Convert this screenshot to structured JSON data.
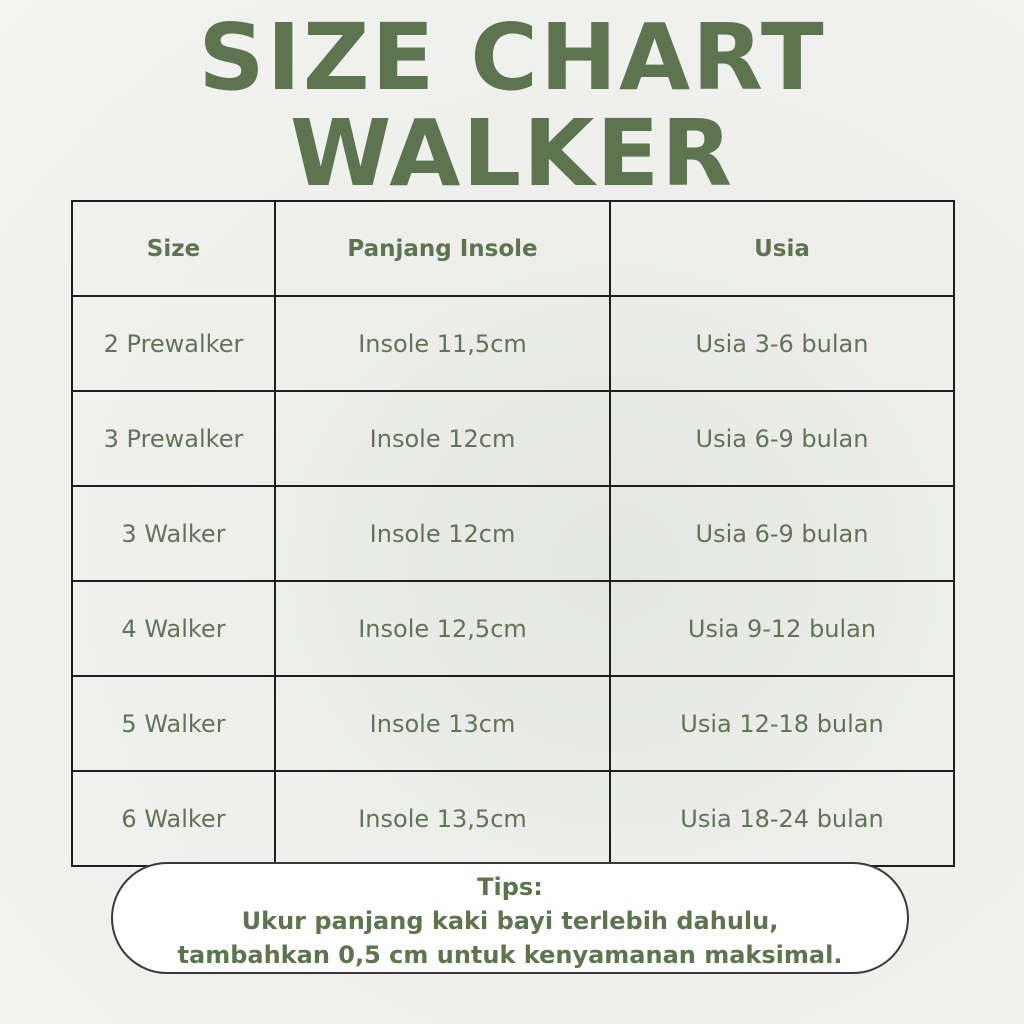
{
  "title": {
    "line1": "SIZE CHART",
    "line2": "WALKER"
  },
  "colors": {
    "accent": "#5e7451",
    "text": "#63735a",
    "border": "#1e1e1e"
  },
  "table": {
    "headers": [
      "Size",
      "Panjang Insole",
      "Usia"
    ],
    "rows": [
      [
        "2 Prewalker",
        "Insole 11,5cm",
        "Usia 3-6 bulan"
      ],
      [
        "3 Prewalker",
        "Insole 12cm",
        "Usia 6-9 bulan"
      ],
      [
        "3 Walker",
        "Insole 12cm",
        "Usia 6-9 bulan"
      ],
      [
        "4 Walker",
        "Insole 12,5cm",
        "Usia 9-12 bulan"
      ],
      [
        "5 Walker",
        "Insole 13cm",
        "Usia 12-18 bulan"
      ],
      [
        "6 Walker",
        "Insole 13,5cm",
        "Usia 18-24 bulan"
      ]
    ]
  },
  "tips": {
    "label": "Tips:",
    "line1": "Ukur panjang kaki bayi terlebih dahulu,",
    "line2": "tambahkan 0,5 cm untuk kenyamanan maksimal."
  }
}
